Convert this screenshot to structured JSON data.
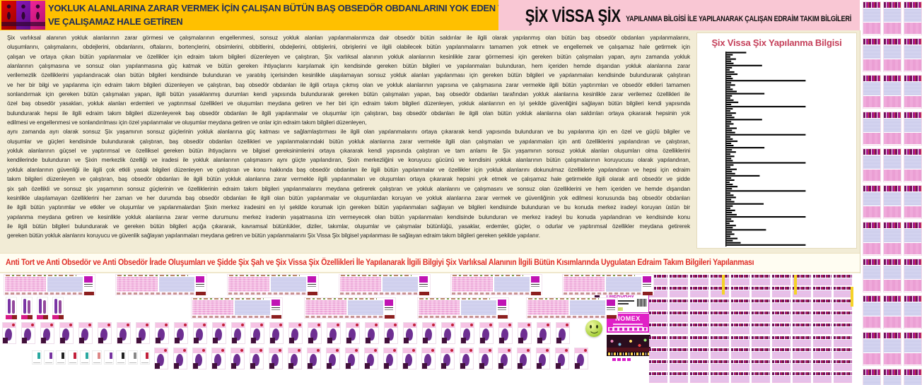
{
  "banner": {
    "line1": "YOKLUK ALANLARINA ZARAR VERMEK İÇİN ÇALIŞAN BÜTÜN BAŞ OBSEDÖR OBDANLARINI YOK EDEN VE ENGELLEYEN",
    "line2": "VE ÇALIŞAMAZ HALE GETİREN"
  },
  "pink_header": {
    "title_big": "ŞİX VİSSA ŞİX",
    "title_rest": "YAPILANMA BİLGİSİ İLE YAPILANARAK ÇALIŞAN EDRAİM TAKIM BİLGİLERİ"
  },
  "body": {
    "short_lines": [
      10,
      22
    ],
    "lines": [
      "Şix varlıksal alanının yokluk alanlarının zarar görmesi ve çalışmalarının engellenmesi, sonsuz yokluk alanları yapılanmalarımıza dair obsedör bütün saldırılar ile ilgili olarak yapılanmış olan bütün baş obsedör obdanları yapılanmalarını,",
      "oluşumlarını, çalışmalarını, obdejlerini, obdanlarını, oftalarını, bortençlerini, obsimlerini, obbitlerini, obdejlerini, obtişlerini, obrişlerini ve ilgili olabilecek bütün yapılanmalarını tamamen yok etmek ve engellemek ve çalışamaz hale getirmek için",
      "çalışan ve ortaya çıkan bütün yapılanmalar ve özellikler için edraim takım bilgileri düzenleyen ve çalıştıran, Şix varlıksal alanının yokluk alanlarının kesinlikle zarar görmemesi için gereken bütün çalışmaları yapan, aynı zamanda yokluk",
      "alanlarının çalışmasına ve sonsuz olan yapılanmasına güç katmak ve bütün gereken ihtiyaçlarını karşılamak için kendisinde gereken bütün bilgileri ve yapılanmaları bulunduran, hem içeriden hemde dışarıdan yokluk alanlarına zarar",
      "verilemezlik özelliklerini yapılandıracak olan bütün bilgileri kendisinde bulunduran ve yaratılış içerisinden kesinlikle ulaşılamayan sonsuz yokluk alanları yapılanması için gereken bütün bilgileri ve yapılanmaları kendisinde bulundurarak çalıştıran",
      "ve her bir bilgi ve yapılanma için edraim takım bilgileri düzenleyen ve çalıştıran, baş obsedör obdanları ile ilgili ortaya çıkmış olan ve yokluk alanlarının yapısına ve çalışmasına zarar vermekle ilgili bütün yaptırımları ve obsedör etkileri tamamen",
      "sonlandırmak için gereken bütün çalışmaları yapan, ilgili bütün yasaklanmış durumları kendi yapısında bulundurarak gereken bütün çalışmaları yapan, baş obsedör obdanları tarafından yokluk alanlarına kesinlikle zarar verilemez özellikleri ile",
      "özel baş obsedör yasakları, yokluk alanları erdemleri ve yaptırımsal özellikleri ve oluşumları meydana getiren ve her biri için edraim takım bilgileri düzenleyen, yokluk alanlarının en iyi şekilde güvenliğini sağlayan bütün bilgileri kendi yapısında",
      "bulundurarak hepsi ile ilgili edraim takım bilgileri düzenleyerek baş obsedör obdanları ile ilgili yapılanmalar ve oluşumlar için çalıştıran, baş obsedör obdanları ile ilgili olan bütün yokluk alanlarına olan saldırıları ortaya çıkararak hepsinin yok",
      "edilmesi ve engellenmesi ve sonlandırılması için özel yapılanmalar ve oluşumlar meydana getiren ve onlar için edraim takım bilgileri düzenleyen,",
      "aynı zamanda ayrı olarak sonsuz Şix yaşamının sonsuz güçlerinin yokluk alanlarına güç katması ve sağlamlaştırması ile ilgili olan yapılanmalarını ortaya çıkararak kendi yapısında bulunduran ve bu yapılanma için en özel ve güçlü bilgiler ve",
      "oluşumlar ve güçleri kendisinde bulundurarak çalıştıran, baş obsedör obdanları özellikleri ve yapılanmalarındaki bütün yokluk alanlarına zarar vermekle ilgili olan çalışmaları ve yapılanmaları için anti özelliklerini yapılandıran ve çalıştıran,",
      "yokluk alanlarının güçsel ve yaptırımsal ve özelliksel gereken bütün ihtiyaçlarını ve bilgisel gereksinimlerini ortaya çıkararak kendi yapısında çalıştıran ve tam anlamı ile Şix yaşamının sonsuz yokluk alanları oluşumları olma özelliklerini",
      "kendilerinde bulunduran ve Şixin merkezlik özelliği ve iradesi ile yokluk alanlarının çalışmasını aynı güçte yapılandıran, Şixin merkezliğini ve koruyucu gücünü ve kendisini yokluk alanlarının bütün çalışmalarının koruyucusu olarak yapılandıran,",
      "yokluk alanlarının güvenliği ile ilgili çok etkili yasak bilgileri düzenleyen ve çalıştıran ve konu hakkında baş obsedör obdanları ile ilgili bütün yapılanmalar ve özellikler için yokluk alanlarını dokunulmaz özelliklerle yapılandıran ve hepsi için edraim",
      "takım bilgileri düzenleyen ve çalıştıran, baş obsedör obdanları ile ilgili bütün yokluk alanlarına zarar vermekle ilgili yapılanmaları ve oluşumları ortaya çıkararak hepsini yok etmek ve çalışamaz hale getirmekle ilgili olarak anti obsedör ve şidde",
      "şix şah özellikli ve sonsuz şix yaşamının sonsuz güçlerinin ve özelliklerinin edraim takım bilgileri yapılanmalarını meydana getirerek çalıştıran ve yokluk alanlarını ve çalışmasını ve sonsuz olan özelliklerini ve hem içeriden ve hemde dışarıdan",
      "kesinlikle ulaşılamayan özelliklerini her zaman ve her durumda baş obsedör obdanları ile ilgili olan bütün yapılanmalar ve oluşumlardan koruyan ve yokluk alanlarına zarar vermek ve güvenliğinin yok edilmesi konusunda baş obsedör obdanları",
      "ile ilgili bütün yaptırımlar ve etkiler ve oluşumlar ve yapılanmalardan Şixin merkez iradesini en iyi şekilde korumak için gereken bütün yapılanmaları sağlayan ve bilgileri kendisinde bulunduran ve bu konuda merkez iradeyi koruyan üstün bir",
      "yapılanma meydana getiren ve kesinlikle yokluk alanlarına zarar verme durumunu merkez iradenin yaşatmasına izin vermeyecek olan bütün yapılanmaları kendisinde bulunduran ve merkez iradeyi bu konuda yapılandıran ve kendisinde konu",
      "ile ilgili bütün bilgileri bulundurarak ve gereken bütün bilgileri açığa çıkararak, kavramsal bütünlükler, diziler, takımlar, oluşumlar ve çalışmalar bütünlüğü, yasaklar, erdemler, güçler, o odurlar ve yaptırımsal özellikler meydana getirerek",
      "gereken bütün yokluk alanlarını koruyucu ve güvenlik sağlayan yapılanmaları meydana getiren ve bütün yapılanmalarını Şix Vissa Şix bilgisel yapılanması ile sağlayan edraim takım bilgileri gereken şekilde yapılanır."
    ]
  },
  "chart_data": {
    "type": "bar",
    "orientation": "horizontal",
    "title": "Şix Vissa Şix Yapılanma Bilgisi",
    "xlim": [
      0,
      100
    ],
    "grid": false,
    "legend": false,
    "values": [
      25,
      8,
      5,
      12,
      6,
      9,
      45,
      7,
      4,
      10,
      14,
      6,
      8,
      100,
      6,
      11,
      5,
      8,
      13,
      48,
      7,
      5,
      9,
      15,
      6,
      100,
      8,
      5,
      12,
      7,
      10,
      45,
      6,
      9,
      4,
      13,
      7,
      11,
      100,
      5,
      8,
      14,
      6,
      9,
      48,
      7,
      12,
      5,
      10,
      6,
      8,
      100,
      9,
      5,
      13,
      7,
      11,
      42,
      6,
      10,
      4,
      8,
      14,
      7,
      100,
      5,
      9,
      12,
      6,
      10,
      47,
      8,
      5,
      11,
      7,
      13,
      100,
      6,
      9,
      4,
      12,
      8,
      50,
      7,
      10,
      5,
      14,
      8,
      18,
      100
    ]
  },
  "footer": {
    "red_line": "Anti Tort ve Anti Obsedör ve Anti Obsedör İrade Oluşumları ve Şidde Şix Şah ve Şix Vissa Şix Özellikleri İle Yapılanarak İlgili Bilgiyi Şix Varlıksal Alanının İlgili Bütün Kısımlarında Uygulatan Edraim Takım Bilgileri Yapılanması"
  },
  "mini_cards": {
    "merurav_label": "MERURAV",
    "nomex_label": "NOMEX"
  },
  "colors": {
    "banner_bg": "#FFC000",
    "banner_text": "#1d2d5a",
    "pink_header_bg": "#f9c7d4",
    "document_bg": "#f2ecd6",
    "band_bg": "#fffdf2",
    "footer_red": "#e02f28",
    "chart_title": "#c5405a",
    "chart_bar": "#000000",
    "thumb_magenta": "#c81cb8",
    "thumb_lavender": "#d9d9f3",
    "thumb_pink": "#efa9da",
    "poster_purple": "#6e2f92",
    "yellow_marker": "#f5d327",
    "smiley_green": "#a6cf3a"
  },
  "decor": {
    "right_strip": {
      "cols": 3,
      "rows": 11
    },
    "bottom_grid": {
      "cols": 10,
      "rows": 9
    },
    "row_a_cards": 6,
    "row_b_card_x": [
      270,
      430,
      590,
      744
    ],
    "row_b_tall": 4,
    "row_c_posters": 30,
    "row_d_specks": 10,
    "row_d_posters": 23,
    "speck_colors": [
      "#2aa8a0",
      "#7733a0",
      "#222222",
      "#c2203a",
      "#2aa8a0",
      "#dd8888",
      "#7733a0",
      "#222222",
      "#888888",
      "#c2203a"
    ]
  }
}
